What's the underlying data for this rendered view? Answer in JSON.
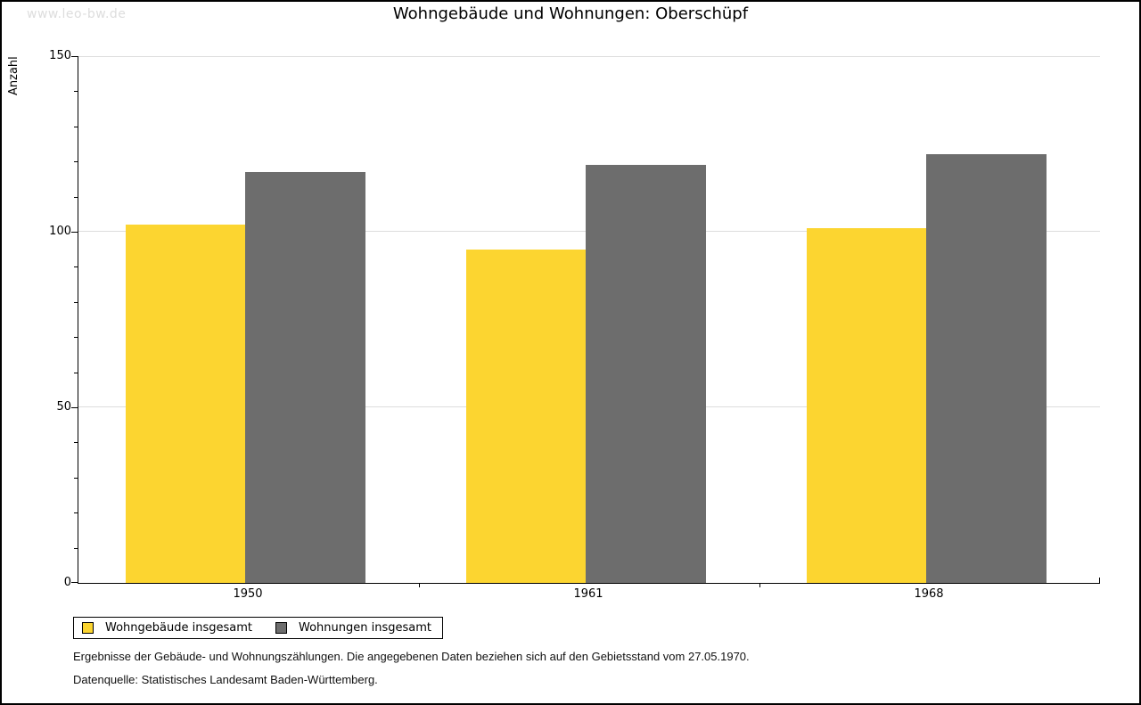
{
  "watermark": "www.leo-bw.de",
  "title": "Wohngebäude und Wohnungen: Oberschüpf",
  "chart_data": {
    "type": "bar",
    "title": "Wohngebäude und Wohnungen: Oberschüpf",
    "xlabel": "",
    "ylabel": "Anzahl",
    "categories": [
      "1950",
      "1961",
      "1968"
    ],
    "series": [
      {
        "name": "Wohngebäude insgesamt",
        "color": "#FCD530",
        "values": [
          102,
          95,
          101
        ]
      },
      {
        "name": "Wohnungen insgesamt",
        "color": "#6D6D6D",
        "values": [
          117,
          119,
          122
        ]
      }
    ],
    "ylim": [
      0,
      150
    ],
    "yticks": [
      0,
      50,
      100,
      150
    ],
    "minor_tick_step": 10,
    "grid": true,
    "gridline_color": "#dddddd",
    "legend_position": "bottom-left"
  },
  "footnotes": {
    "line1": "Ergebnisse der Gebäude- und Wohnungszählungen. Die angegebenen Daten beziehen sich auf den Gebietsstand vom 27.05.1970.",
    "line2": "Datenquelle: Statistisches Landesamt Baden-Württemberg."
  }
}
